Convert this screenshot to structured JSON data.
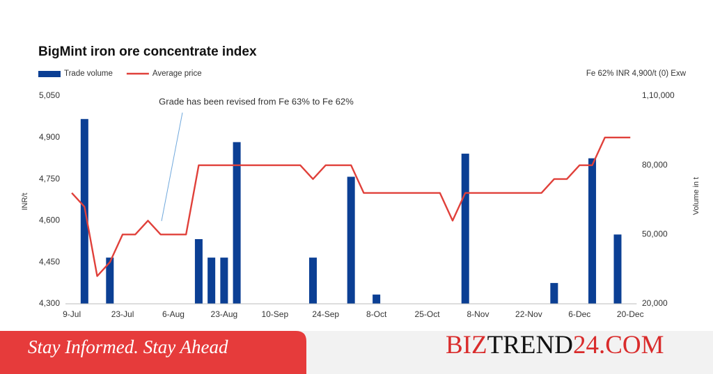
{
  "chart_data": {
    "type": "combo",
    "title": "BigMint iron ore concentrate index",
    "note": "Fe 62%  INR 4,900/t (0) Exw",
    "annotation": "Grade has been revised from Fe 63% to Fe 62%",
    "ylabel": "INR/t",
    "y2label": "Volume in t",
    "categories": [
      "9-Jul",
      null,
      null,
      null,
      "23-Jul",
      null,
      null,
      null,
      "6-Aug",
      null,
      null,
      null,
      "23-Aug",
      null,
      null,
      null,
      "10-Sep",
      null,
      null,
      null,
      "24-Sep",
      null,
      null,
      null,
      "8-Oct",
      null,
      null,
      null,
      "25-Oct",
      null,
      null,
      null,
      "8-Nov",
      null,
      null,
      null,
      "22-Nov",
      null,
      null,
      null,
      "6-Dec",
      null,
      null,
      null,
      "20-Dec"
    ],
    "series": [
      {
        "name": "Trade volume",
        "type": "bar",
        "axis": "y2",
        "color": "#0b3f94",
        "values": [
          null,
          100000,
          null,
          40000,
          null,
          null,
          null,
          null,
          null,
          null,
          48000,
          40000,
          40000,
          90000,
          null,
          null,
          null,
          null,
          null,
          40000,
          null,
          null,
          75000,
          null,
          24000,
          null,
          null,
          null,
          null,
          null,
          null,
          85000,
          null,
          null,
          null,
          null,
          null,
          null,
          29000,
          null,
          null,
          83000,
          null,
          50000,
          null
        ]
      },
      {
        "name": "Average price",
        "type": "line",
        "color": "#e0403a",
        "values": [
          4700,
          4650,
          4400,
          4450,
          4550,
          4550,
          4600,
          4550,
          4550,
          4550,
          4800,
          4800,
          4800,
          4800,
          4800,
          4800,
          4800,
          4800,
          4800,
          4750,
          4800,
          4800,
          4800,
          4700,
          4700,
          4700,
          4700,
          4700,
          4700,
          4700,
          4600,
          4700,
          4700,
          4700,
          4700,
          4700,
          4700,
          4700,
          4750,
          4750,
          4800,
          4800,
          4900,
          4900,
          4900
        ]
      }
    ],
    "ylim": [
      4300,
      5050
    ],
    "yticks": [
      {
        "value": 4300,
        "label": "4,300"
      },
      {
        "value": 4450,
        "label": "4,450"
      },
      {
        "value": 4600,
        "label": "4,600"
      },
      {
        "value": 4750,
        "label": "4,750"
      },
      {
        "value": 4900,
        "label": "4,900"
      },
      {
        "value": 5050,
        "label": "5,050"
      }
    ],
    "y2lim": [
      20000,
      110000
    ],
    "y2ticks": [
      {
        "value": 20000,
        "label": "20,000"
      },
      {
        "value": 50000,
        "label": "50,000"
      },
      {
        "value": 80000,
        "label": "80,000"
      },
      {
        "value": 110000,
        "label": "1,10,000"
      }
    ],
    "grid": false
  },
  "footer": {
    "tagline": "Stay Informed. Stay Ahead",
    "brand": [
      "BIZ",
      "TREND",
      "24.COM"
    ]
  }
}
